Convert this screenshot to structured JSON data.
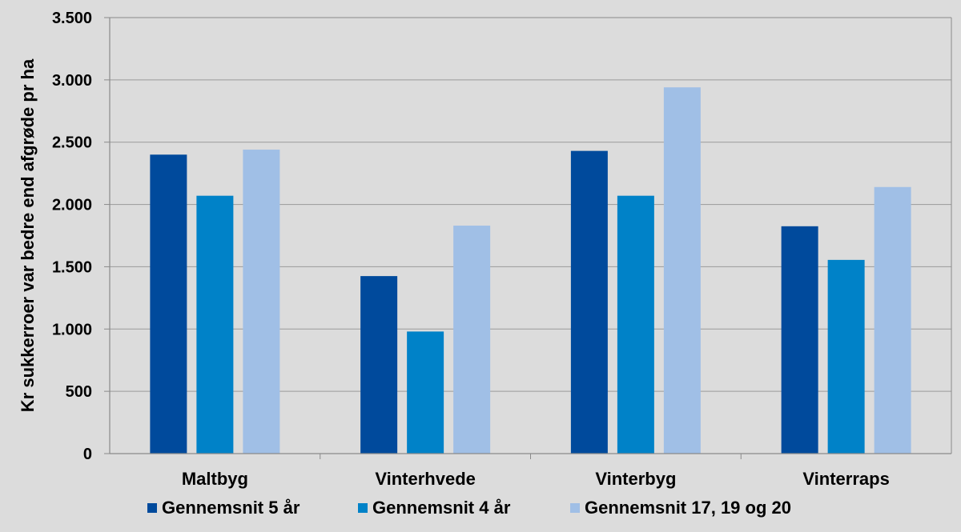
{
  "chart_data": {
    "type": "bar",
    "title": "",
    "xlabel": "",
    "ylabel": "Kr sukkerroer var bedre end afgrøde pr ha",
    "categories": [
      "Maltbyg",
      "Vinterhvede",
      "Vinterbyg",
      "Vinterraps"
    ],
    "series": [
      {
        "name": "Gennemsnit 5 år",
        "color": "#004a9c",
        "values": [
          2400,
          1425,
          2430,
          1825
        ]
      },
      {
        "name": "Gennemsnit 4 år",
        "color": "#0082c8",
        "values": [
          2070,
          980,
          2070,
          1555
        ]
      },
      {
        "name": "Gennemsnit 17, 19 og 20",
        "color": "#a0bfe6",
        "values": [
          2440,
          1830,
          2940,
          2140
        ]
      }
    ],
    "ylim": [
      0,
      3500
    ],
    "yticks": [
      0,
      500,
      1000,
      1500,
      2000,
      2500,
      3000,
      3500
    ],
    "ytick_labels": [
      "0",
      "500",
      "1.000",
      "1.500",
      "2.000",
      "2.500",
      "3.000",
      "3.500"
    ],
    "grid": true,
    "legend_position": "bottom"
  }
}
